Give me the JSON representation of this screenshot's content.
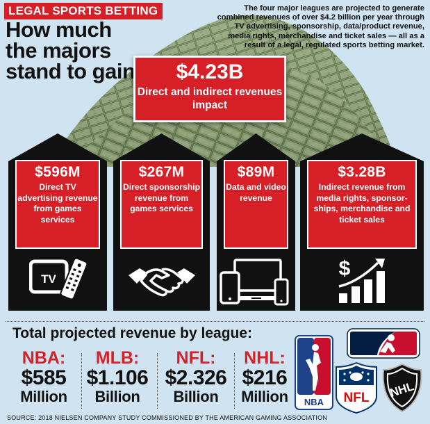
{
  "kicker": "LEGAL SPORTS BETTING",
  "headline": "How much the majors stand to gain",
  "intro": "The four major leagues are projected to generate combined revenues of over $4.2 billion per year through TV advertising, sponsorship, data/product revenue, media rights, merchandise and ticket sales — all as a result of a legal, regulated sports betting market.",
  "hero": {
    "value": "$4.23B",
    "label": "Direct and indirect revenues impact"
  },
  "cards": [
    {
      "value": "$596M",
      "label": "Direct TV advertising revenue from games services",
      "icon": "tv-remote-icon"
    },
    {
      "value": "$267M",
      "label": "Direct sponsorship revenue from games services",
      "icon": "handshake-icon"
    },
    {
      "value": "$89M",
      "label": "Data and video revenue",
      "icon": "devices-icon"
    },
    {
      "value": "$3.28B",
      "label": "Indirect revenue from media rights, sponsor-ships, merchandise and ticket sales",
      "icon": "growth-chart-icon"
    }
  ],
  "tv_icon_text": "TV",
  "growth_icon_text": "$",
  "section_title": "Total projected revenue by league:",
  "leagues": [
    {
      "name": "NBA:",
      "amount": "$585",
      "unit": "Million"
    },
    {
      "name": "MLB:",
      "amount": "$1.106",
      "unit": "Billion"
    },
    {
      "name": "NFL:",
      "amount": "$2.326",
      "unit": "Billion"
    },
    {
      "name": "NHL:",
      "amount": "$216",
      "unit": "Million"
    }
  ],
  "logos": {
    "nba": "NBA",
    "nfl": "NFL",
    "nhl": "NHL"
  },
  "source": "SOURCE: 2018 NIELSEN COMPANY STUDY COMMISSIONED BY THE AMERICAN GAMING ASSOCIATION",
  "colors": {
    "background": "#cfe3f0",
    "accent_red": "#d61f26",
    "card_black": "#111111",
    "money_green": "#6f8a5a"
  }
}
